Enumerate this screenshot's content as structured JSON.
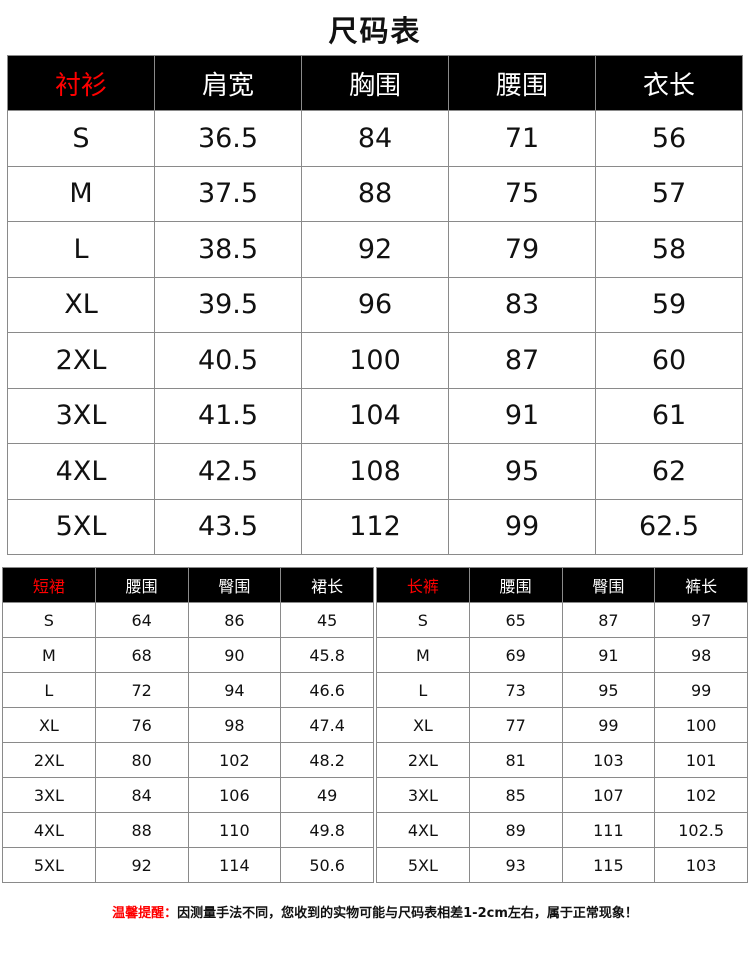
{
  "title": "尺码表",
  "shirt": {
    "headers": [
      "衬衫",
      "肩宽",
      "胸围",
      "腰围",
      "衣长"
    ],
    "rows": [
      [
        "S",
        "36.5",
        "84",
        "71",
        "56"
      ],
      [
        "M",
        "37.5",
        "88",
        "75",
        "57"
      ],
      [
        "L",
        "38.5",
        "92",
        "79",
        "58"
      ],
      [
        "XL",
        "39.5",
        "96",
        "83",
        "59"
      ],
      [
        "2XL",
        "40.5",
        "100",
        "87",
        "60"
      ],
      [
        "3XL",
        "41.5",
        "104",
        "91",
        "61"
      ],
      [
        "4XL",
        "42.5",
        "108",
        "95",
        "62"
      ],
      [
        "5XL",
        "43.5",
        "112",
        "99",
        "62.5"
      ]
    ]
  },
  "skirt": {
    "headers": [
      "短裙",
      "腰围",
      "臀围",
      "裙长"
    ],
    "rows": [
      [
        "S",
        "64",
        "86",
        "45"
      ],
      [
        "M",
        "68",
        "90",
        "45.8"
      ],
      [
        "L",
        "72",
        "94",
        "46.6"
      ],
      [
        "XL",
        "76",
        "98",
        "47.4"
      ],
      [
        "2XL",
        "80",
        "102",
        "48.2"
      ],
      [
        "3XL",
        "84",
        "106",
        "49"
      ],
      [
        "4XL",
        "88",
        "110",
        "49.8"
      ],
      [
        "5XL",
        "92",
        "114",
        "50.6"
      ]
    ]
  },
  "pants": {
    "headers": [
      "长裤",
      "腰围",
      "臀围",
      "裤长"
    ],
    "rows": [
      [
        "S",
        "65",
        "87",
        "97"
      ],
      [
        "M",
        "69",
        "91",
        "98"
      ],
      [
        "L",
        "73",
        "95",
        "99"
      ],
      [
        "XL",
        "77",
        "99",
        "100"
      ],
      [
        "2XL",
        "81",
        "103",
        "101"
      ],
      [
        "3XL",
        "85",
        "107",
        "102"
      ],
      [
        "4XL",
        "89",
        "111",
        "102.5"
      ],
      [
        "5XL",
        "93",
        "115",
        "103"
      ]
    ]
  },
  "note": {
    "lead": "温馨提醒：",
    "text": "因测量手法不同，您收到的实物可能与尺码表相差1-2cm左右，属于正常现象！"
  },
  "colors": {
    "header_bg": "#000000",
    "header_text": "#ffffff",
    "category_text": "#ff0000",
    "border": "#8a8a8a"
  }
}
